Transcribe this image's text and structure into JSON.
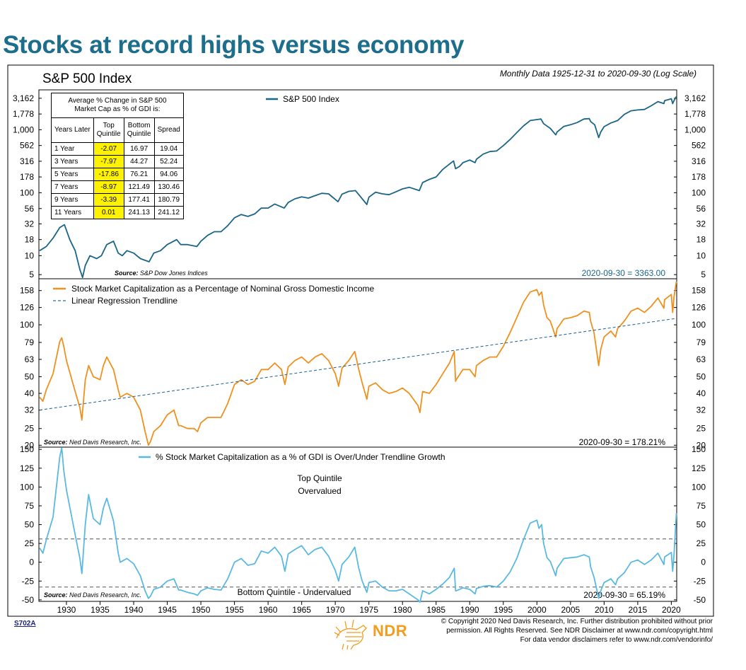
{
  "headline": "Stocks at record highs versus economy",
  "panel1": {
    "title": "S&P 500 Index",
    "subtitle": "Monthly Data 1925-12-31 to 2020-09-30 (Log Scale)",
    "legend": "S&P 500 Index",
    "source_prefix": "Source:",
    "source": "S&P Dow Jones Indices",
    "latest": "2020-09-30 = 3363.00",
    "color": "#1b6586"
  },
  "panel2": {
    "legend_main": "Stock Market Capitalization as a Percentage of Nominal Gross Domestic Income",
    "legend_trend": "Linear Regression Trendline",
    "source_prefix": "Source:",
    "source": "Ned Davis Research, Inc.",
    "latest": "2020-09-30 = 178.21%",
    "color": "#f0901e",
    "trend_color": "#2e6d9a"
  },
  "panel3": {
    "legend": "% Stock Market Capitalization as a % of GDI is Over/Under Trendline Growth",
    "top_label_line1": "Top Quintile",
    "top_label_line2": "Overvalued",
    "bottom_label": "Bottom Quintile - Undervalued",
    "source_prefix": "Source:",
    "source": "Ned Davis Research, Inc.",
    "latest": "2020-09-30 = 65.19%",
    "color": "#5ab9e3"
  },
  "table": {
    "caption_line1": "Average % Change in S&P 500",
    "caption_line2": "Market Cap as % of GDI is:",
    "headers": {
      "years_later": "Years Later",
      "top_line1": "Top",
      "top_line2": "Quintile",
      "bottom_line1": "Bottom",
      "bottom_line2": "Quintile",
      "spread": "Spread"
    },
    "rows": [
      {
        "label": "1 Year",
        "top": "-2.07",
        "bottom": "16.97",
        "spread": "19.04"
      },
      {
        "label": "3 Years",
        "top": "-7.97",
        "bottom": "44.27",
        "spread": "52.24"
      },
      {
        "label": "5 Years",
        "top": "-17.86",
        "bottom": "76.21",
        "spread": "94.06"
      },
      {
        "label": "7 Years",
        "top": "-8.97",
        "bottom": "121.49",
        "spread": "130.46"
      },
      {
        "label": "9 Years",
        "top": "-3.39",
        "bottom": "177.41",
        "spread": "180.79"
      },
      {
        "label": "11 Years",
        "top": "0.01",
        "bottom": "241.13",
        "spread": "241.12"
      }
    ]
  },
  "footer": {
    "code": "S702A",
    "logo_text": "NDR",
    "copyright_line1": "© Copyright 2020 Ned Davis Research, Inc. Further distribution prohibited without prior",
    "copyright_line2": "permission. All Rights Reserved. See NDR Disclaimer at www.ndr.com/copyright.html",
    "copyright_line3": "For data vendor disclaimers refer to www.ndr.com/vendorinfo/"
  },
  "chart_data": [
    {
      "type": "line",
      "title": "S&P 500 Index",
      "scale": "log",
      "y_ticks": [
        5,
        10,
        18,
        32,
        56,
        100,
        178,
        316,
        562,
        1000,
        1778,
        3162
      ],
      "y_tick_labels": [
        "5",
        "10",
        "18",
        "32",
        "56",
        "100",
        "178",
        "316",
        "562",
        "1,000",
        "1,778",
        "3,162"
      ],
      "ylim": [
        4.3,
        4300
      ],
      "x_ticks": [
        1930,
        1935,
        1940,
        1945,
        1950,
        1955,
        1960,
        1965,
        1970,
        1975,
        1980,
        1985,
        1990,
        1995,
        2000,
        2005,
        2010,
        2015,
        2020
      ],
      "xlim": [
        1925.9,
        2020.8
      ],
      "series": [
        {
          "name": "S&P 500 Index",
          "x": [
            1926.0,
            1927.0,
            1928.0,
            1929.0,
            1929.7,
            1930.5,
            1931.3,
            1932.0,
            1932.4,
            1932.8,
            1933.5,
            1934.5,
            1935.2,
            1936.0,
            1937.0,
            1937.7,
            1938.3,
            1939.0,
            1940.0,
            1941.0,
            1942.3,
            1943.0,
            1944.0,
            1945.0,
            1946.4,
            1947.0,
            1948.0,
            1949.4,
            1950.0,
            1951.0,
            1952.0,
            1953.0,
            1954.0,
            1955.0,
            1956.0,
            1957.0,
            1958.0,
            1959.0,
            1960.0,
            1961.0,
            1962.4,
            1963.0,
            1964.0,
            1965.0,
            1966.0,
            1967.0,
            1968.0,
            1969.0,
            1970.4,
            1971.0,
            1972.0,
            1973.0,
            1974.7,
            1975.0,
            1976.0,
            1977.0,
            1978.0,
            1979.0,
            1980.0,
            1981.0,
            1982.5,
            1983.0,
            1984.0,
            1985.0,
            1986.0,
            1987.6,
            1987.9,
            1988.5,
            1989.0,
            1990.0,
            1990.8,
            1991.0,
            1992.0,
            1993.0,
            1994.0,
            1995.0,
            1996.0,
            1997.0,
            1998.0,
            1999.0,
            2000.0,
            2000.6,
            2001.0,
            2002.0,
            2002.8,
            2003.0,
            2004.0,
            2005.0,
            2006.0,
            2007.0,
            2007.8,
            2008.0,
            2008.6,
            2009.2,
            2009.5,
            2010.0,
            2011.0,
            2012.0,
            2013.0,
            2014.0,
            2015.0,
            2016.0,
            2017.0,
            2018.0,
            2018.9,
            2019.0,
            2020.0,
            2020.2,
            2020.4,
            2020.75
          ],
          "y": [
            12,
            14,
            19,
            28,
            31,
            18,
            12,
            6,
            4.5,
            7,
            10,
            9,
            10,
            15,
            17,
            11,
            10,
            12,
            11,
            9,
            8,
            11,
            12,
            15,
            18,
            15,
            15,
            14,
            17,
            21,
            24,
            24,
            30,
            40,
            45,
            42,
            46,
            57,
            57,
            66,
            57,
            70,
            80,
            86,
            82,
            90,
            98,
            96,
            72,
            95,
            105,
            108,
            65,
            85,
            102,
            96,
            93,
            103,
            115,
            122,
            108,
            145,
            163,
            178,
            235,
            320,
            240,
            262,
            300,
            330,
            300,
            340,
            410,
            450,
            460,
            560,
            700,
            900,
            1150,
            1400,
            1450,
            1480,
            1250,
            1050,
            830,
            920,
            1130,
            1200,
            1300,
            1480,
            1500,
            1350,
            1200,
            750,
            920,
            1120,
            1280,
            1400,
            1750,
            2000,
            2060,
            2100,
            2400,
            2800,
            2600,
            2900,
            3100,
            2600,
            2900,
            3363
          ]
        }
      ]
    },
    {
      "type": "line",
      "title": "",
      "scale": "log",
      "y_ticks": [
        20,
        25,
        32,
        40,
        50,
        63,
        79,
        100,
        126,
        158
      ],
      "ylim": [
        19.5,
        185
      ],
      "x_ticks": [
        1930,
        1935,
        1940,
        1945,
        1950,
        1955,
        1960,
        1965,
        1970,
        1975,
        1980,
        1985,
        1990,
        1995,
        2000,
        2005,
        2010,
        2015,
        2020
      ],
      "xlim": [
        1925.9,
        2020.8
      ],
      "series": [
        {
          "name": "Stock Market Capitalization as a Percentage of Nominal Gross Domestic Income",
          "x": [
            1926.0,
            1926.5,
            1927.0,
            1928.0,
            1929.0,
            1929.3,
            1929.6,
            1930.0,
            1931.0,
            1932.0,
            1932.3,
            1932.8,
            1933.3,
            1934.0,
            1935.0,
            1935.5,
            1936.0,
            1937.0,
            1937.7,
            1938.0,
            1939.0,
            1940.0,
            1941.0,
            1941.7,
            1942.2,
            1942.5,
            1943.0,
            1944.0,
            1945.0,
            1946.0,
            1946.7,
            1947.0,
            1948.0,
            1949.0,
            1949.5,
            1950.0,
            1951.0,
            1952.0,
            1953.0,
            1954.0,
            1955.0,
            1956.0,
            1957.0,
            1958.0,
            1959.0,
            1960.0,
            1961.0,
            1962.0,
            1962.5,
            1963.0,
            1964.0,
            1965.0,
            1966.0,
            1967.0,
            1968.0,
            1969.0,
            1970.0,
            1970.5,
            1971.0,
            1972.0,
            1972.9,
            1973.5,
            1974.0,
            1974.7,
            1975.0,
            1976.0,
            1977.0,
            1978.0,
            1979.0,
            1980.0,
            1981.0,
            1982.3,
            1982.6,
            1983.0,
            1984.0,
            1985.0,
            1986.0,
            1987.0,
            1987.7,
            1987.9,
            1988.0,
            1989.0,
            1990.0,
            1990.8,
            1991.0,
            1992.0,
            1993.0,
            1994.0,
            1995.0,
            1996.0,
            1997.0,
            1998.0,
            1999.0,
            2000.0,
            2000.3,
            2000.7,
            2001.0,
            2001.5,
            2002.0,
            2002.8,
            2003.0,
            2004.0,
            2005.0,
            2006.0,
            2007.0,
            2007.8,
            2008.0,
            2008.5,
            2009.2,
            2009.5,
            2010.0,
            2011.0,
            2011.7,
            2012.0,
            2013.0,
            2014.0,
            2015.0,
            2016.0,
            2017.0,
            2018.0,
            2018.9,
            2019.0,
            2020.0,
            2020.2,
            2020.4,
            2020.75
          ],
          "y": [
            38,
            36,
            42,
            52,
            80,
            84,
            75,
            62,
            45,
            33,
            28,
            48,
            58,
            50,
            48,
            58,
            65,
            55,
            42,
            38,
            40,
            38,
            32,
            24,
            20,
            21,
            24,
            26,
            30,
            32,
            26,
            26,
            25,
            25,
            24,
            27,
            29,
            29,
            29,
            35,
            45,
            48,
            45,
            47,
            55,
            55,
            60,
            55,
            45,
            57,
            62,
            65,
            60,
            65,
            68,
            62,
            52,
            44,
            56,
            62,
            70,
            55,
            46,
            37,
            44,
            46,
            42,
            40,
            41,
            43,
            40,
            34,
            31,
            41,
            40,
            45,
            52,
            60,
            70,
            47,
            48,
            55,
            55,
            50,
            58,
            62,
            65,
            65,
            75,
            90,
            110,
            135,
            155,
            160,
            148,
            155,
            130,
            110,
            105,
            85,
            95,
            108,
            110,
            113,
            120,
            118,
            105,
            90,
            58,
            72,
            85,
            92,
            85,
            95,
            105,
            120,
            125,
            118,
            128,
            143,
            125,
            140,
            150,
            118,
            145,
            178.21
          ]
        },
        {
          "name": "Linear Regression Trendline",
          "x": [
            1926.0,
            2020.75
          ],
          "y": [
            32,
            109
          ]
        }
      ]
    },
    {
      "type": "line",
      "title": "",
      "y_ticks": [
        -50,
        -25,
        0,
        25,
        50,
        75,
        100,
        125,
        150
      ],
      "ylim": [
        -52,
        153
      ],
      "reference_lines": [
        31,
        -33
      ],
      "x_ticks": [
        1930,
        1935,
        1940,
        1945,
        1950,
        1955,
        1960,
        1965,
        1970,
        1975,
        1980,
        1985,
        1990,
        1995,
        2000,
        2005,
        2010,
        2015,
        2020
      ],
      "xlim": [
        1925.9,
        2020.8
      ],
      "series": [
        {
          "name": "% Stock Market Capitalization as a % of GDI is Over/Under Trendline Growth",
          "x": [
            1926.0,
            1926.5,
            1927.0,
            1928.0,
            1929.0,
            1929.3,
            1929.6,
            1930.0,
            1931.0,
            1932.0,
            1932.3,
            1932.8,
            1933.3,
            1934.0,
            1935.0,
            1935.5,
            1936.0,
            1937.0,
            1937.7,
            1938.0,
            1939.0,
            1940.0,
            1941.0,
            1941.7,
            1942.2,
            1942.5,
            1943.0,
            1944.0,
            1945.0,
            1946.0,
            1946.7,
            1947.0,
            1948.0,
            1949.0,
            1949.5,
            1950.0,
            1951.0,
            1952.0,
            1953.0,
            1954.0,
            1955.0,
            1956.0,
            1957.0,
            1958.0,
            1959.0,
            1960.0,
            1961.0,
            1962.0,
            1962.5,
            1963.0,
            1964.0,
            1965.0,
            1966.0,
            1967.0,
            1968.0,
            1969.0,
            1970.0,
            1970.5,
            1971.0,
            1972.0,
            1972.9,
            1973.5,
            1974.0,
            1974.7,
            1975.0,
            1976.0,
            1977.0,
            1978.0,
            1979.0,
            1980.0,
            1981.0,
            1982.3,
            1982.6,
            1983.0,
            1984.0,
            1985.0,
            1986.0,
            1987.0,
            1987.7,
            1987.9,
            1988.0,
            1989.0,
            1990.0,
            1990.8,
            1991.0,
            1992.0,
            1993.0,
            1994.0,
            1995.0,
            1996.0,
            1997.0,
            1998.0,
            1999.0,
            2000.0,
            2000.3,
            2000.7,
            2001.0,
            2001.5,
            2002.0,
            2002.8,
            2003.0,
            2004.0,
            2005.0,
            2006.0,
            2007.0,
            2007.8,
            2008.0,
            2008.5,
            2009.2,
            2009.5,
            2010.0,
            2011.0,
            2011.7,
            2012.0,
            2013.0,
            2014.0,
            2015.0,
            2016.0,
            2017.0,
            2018.0,
            2018.9,
            2019.0,
            2020.0,
            2020.2,
            2020.4,
            2020.75
          ],
          "y": [
            19,
            12,
            30,
            60,
            140,
            152,
            122,
            96,
            50,
            5,
            -15,
            50,
            90,
            58,
            50,
            72,
            85,
            55,
            12,
            0,
            5,
            -2,
            -18,
            -38,
            -48,
            -45,
            -36,
            -33,
            -25,
            -22,
            -37,
            -37,
            -40,
            -42,
            -44,
            -38,
            -34,
            -36,
            -37,
            -22,
            0,
            5,
            -4,
            -2,
            15,
            12,
            20,
            8,
            -12,
            11,
            17,
            22,
            10,
            17,
            20,
            8,
            -11,
            -25,
            -3,
            7,
            20,
            -8,
            -25,
            -40,
            -27,
            -25,
            -33,
            -38,
            -38,
            -36,
            -42,
            -50,
            -53,
            -38,
            -42,
            -36,
            -29,
            -20,
            -8,
            -38,
            -38,
            -34,
            -36,
            -42,
            -35,
            -32,
            -31,
            -33,
            -25,
            -13,
            5,
            30,
            52,
            56,
            45,
            50,
            25,
            6,
            1,
            -18,
            -8,
            5,
            6,
            7,
            10,
            7,
            -6,
            -20,
            -48,
            -38,
            -27,
            -22,
            -30,
            -22,
            -14,
            0,
            3,
            -3,
            3,
            12,
            -3,
            7,
            13,
            -12,
            10,
            65.19
          ]
        }
      ]
    }
  ]
}
